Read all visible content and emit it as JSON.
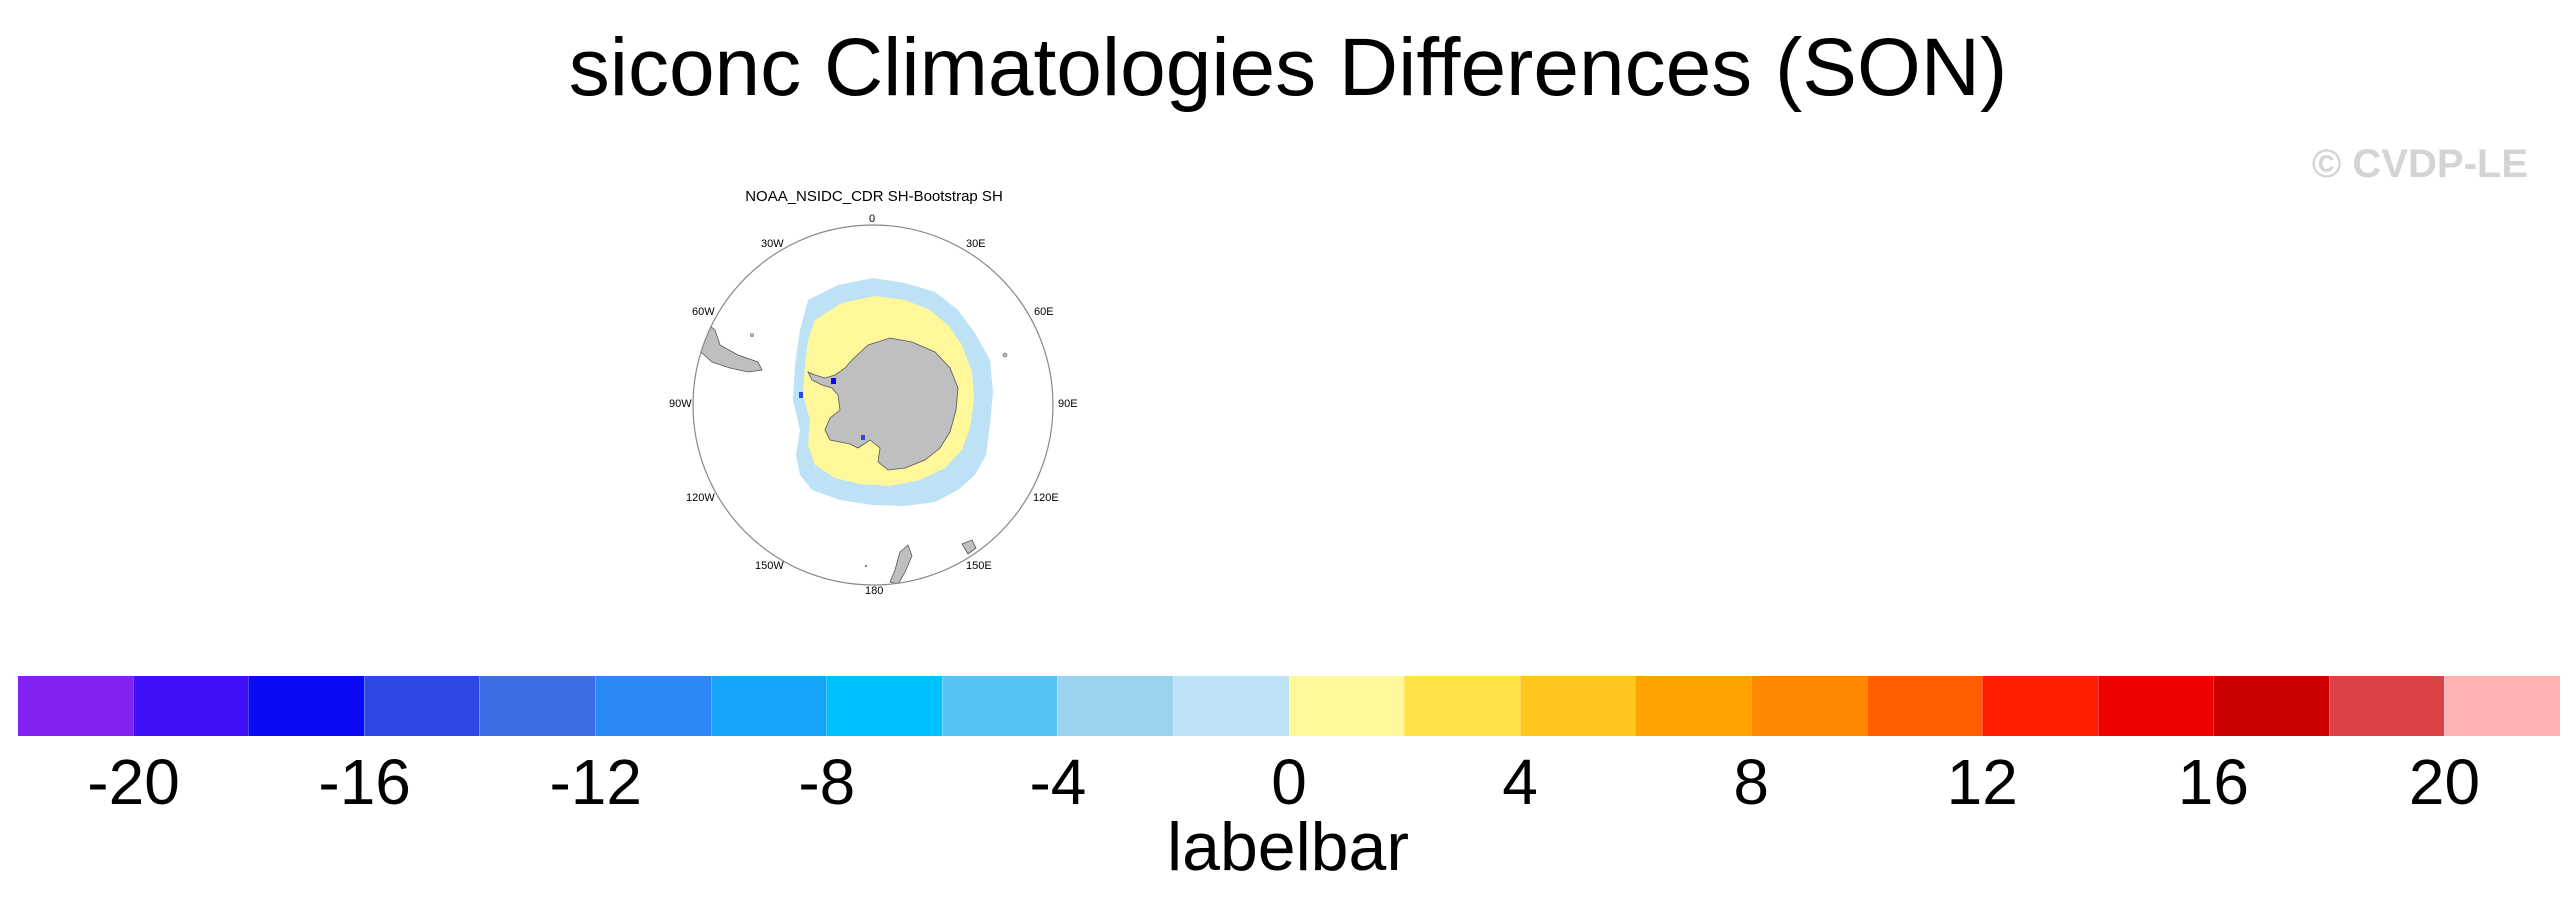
{
  "title": "siconc Climatologies Differences (SON)",
  "watermark": "© CVDP-LE",
  "panel": {
    "title": "NOAA_NSIDC_CDR SH-Bootstrap SH",
    "lon_labels": [
      "0",
      "30E",
      "60E",
      "90E",
      "120E",
      "150E",
      "180",
      "150W",
      "120W",
      "90W",
      "60W",
      "30W"
    ]
  },
  "colorbar": {
    "colors": [
      "#8221f0",
      "#410ffa",
      "#0a0af5",
      "#2e48e6",
      "#3c6fe6",
      "#2b88f5",
      "#16a3fa",
      "#00c1ff",
      "#54c4f2",
      "#9bd2ee",
      "#bde2f6",
      "#fff89b",
      "#ffe246",
      "#ffc71e",
      "#ffa200",
      "#ff8800",
      "#ff5d00",
      "#ff1f00",
      "#f00000",
      "#cc0000",
      "#dc4245",
      "#ffb2b2"
    ],
    "tick_labels": [
      "-20",
      "-16",
      "-12",
      "-8",
      "-4",
      "0",
      "4",
      "8",
      "12",
      "16",
      "20"
    ],
    "label": "labelbar"
  },
  "colors": {
    "land": "#bfbfbf",
    "ice_diff_negative": "#bde2f6",
    "ice_diff_positive": "#fff89b"
  }
}
